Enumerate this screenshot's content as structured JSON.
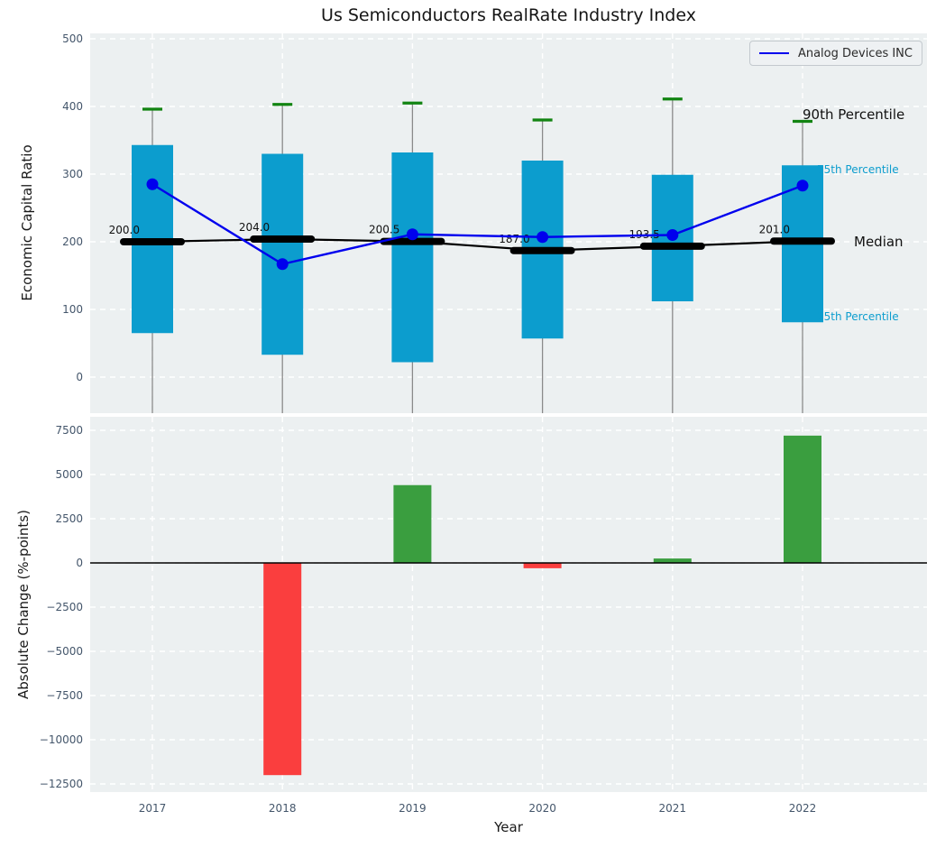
{
  "title": "Us Semiconductors RealRate Industry Index",
  "legend": {
    "label": "Analog Devices INC",
    "line_color": "#0000ee"
  },
  "colors": {
    "panel_bg": "#ecf0f1",
    "grid": "#ffffff",
    "box": "#0c9dce",
    "cap": "#128412",
    "whisker": "#8a8a8a",
    "median_line": "#000000",
    "series_line": "#0000ee",
    "bar_positive": "#3a9e3f",
    "bar_negative": "#fa3e3e",
    "tick_text": "#44566b",
    "zero_line": "#000000"
  },
  "chart_data": [
    {
      "type": "box-timeseries",
      "title": "Us Semiconductors RealRate Industry Index",
      "ylabel": "Economic Capital Ratio",
      "categories": [
        "2017",
        "2018",
        "2019",
        "2020",
        "2021",
        "2022"
      ],
      "ylim": [
        -53,
        508
      ],
      "ytick_values": [
        0,
        100,
        200,
        300,
        400,
        500
      ],
      "ytick_labels": [
        "0",
        "100",
        "200",
        "300",
        "400",
        "500"
      ],
      "grid": true,
      "legend_position": "upper right",
      "series": [
        {
          "name": "90th Percentile",
          "role": "cap",
          "values": [
            396,
            403,
            405,
            380,
            411,
            378
          ]
        },
        {
          "name": "75th Percentile",
          "role": "box_top",
          "values": [
            343,
            330,
            332,
            320,
            299,
            313
          ]
        },
        {
          "name": "Median",
          "role": "median",
          "values": [
            200.0,
            204.0,
            200.5,
            187.0,
            193.5,
            201.0
          ]
        },
        {
          "name": "25th Percentile",
          "role": "box_bottom",
          "values": [
            65,
            33,
            22,
            57,
            112,
            81
          ]
        },
        {
          "name": "Analog Devices INC",
          "role": "line",
          "values": [
            285,
            167,
            211,
            207,
            210,
            283
          ]
        }
      ],
      "median_labels": [
        "200.0",
        "204.0",
        "200.5",
        "187.0",
        "193.5",
        "201.0"
      ],
      "right_labels": {
        "p90": "90th Percentile",
        "p75": "75th Percentile",
        "median": "Median",
        "p25": "25th Percentile"
      }
    },
    {
      "type": "bar",
      "ylabel": "Absolute Change (%-points)",
      "xlabel": "Year",
      "categories": [
        "2017",
        "2018",
        "2019",
        "2020",
        "2021",
        "2022"
      ],
      "values": [
        null,
        -12000,
        4400,
        -300,
        250,
        7200
      ],
      "ylim": [
        -13000,
        8300
      ],
      "ytick_values": [
        7500,
        5000,
        2500,
        0,
        -2500,
        -5000,
        -7500,
        -10000,
        -12500
      ],
      "ytick_labels": [
        "7500",
        "5000",
        "2500",
        "0",
        "−2500",
        "−5000",
        "−7500",
        "−10000",
        "−12500"
      ],
      "grid": true
    }
  ]
}
